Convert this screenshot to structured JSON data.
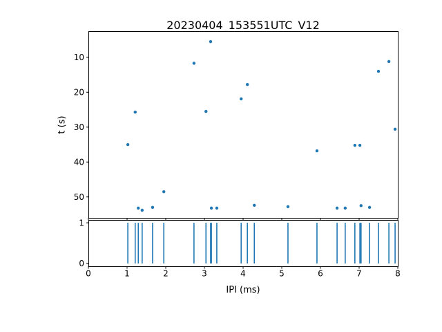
{
  "figure": {
    "title": "20230404_153551UTC_V12",
    "background_color": "#ffffff",
    "accent_color": "#1f77b4",
    "axis_color": "#000000",
    "tick_label_color": "#000000"
  },
  "chart_data": [
    {
      "type": "scatter",
      "title": "20230404_153551UTC_V12",
      "xlabel": "",
      "ylabel": "t (s)",
      "xlim": [
        0,
        8
      ],
      "ylim": [
        2.5,
        56
      ],
      "y_inverted": true,
      "xticks": [
        0,
        1,
        2,
        3,
        4,
        5,
        6,
        7,
        8
      ],
      "x_tick_labels_visible": false,
      "yticks": [
        10,
        20,
        30,
        40,
        50
      ],
      "grid": false,
      "legend": "none",
      "marker_color": "#1f77b4",
      "points": [
        [
          1.02,
          35.0
        ],
        [
          1.21,
          25.7
        ],
        [
          1.29,
          53.2
        ],
        [
          1.39,
          53.8
        ],
        [
          1.66,
          53.0
        ],
        [
          1.95,
          48.5
        ],
        [
          2.73,
          11.7
        ],
        [
          3.04,
          25.5
        ],
        [
          3.16,
          5.5
        ],
        [
          3.18,
          53.2
        ],
        [
          3.32,
          53.2
        ],
        [
          3.95,
          21.9
        ],
        [
          4.11,
          17.8
        ],
        [
          4.29,
          52.4
        ],
        [
          5.16,
          52.8
        ],
        [
          5.91,
          36.8
        ],
        [
          6.43,
          53.2
        ],
        [
          6.64,
          53.2
        ],
        [
          6.89,
          35.2
        ],
        [
          7.02,
          35.2
        ],
        [
          7.05,
          52.5
        ],
        [
          7.27,
          53.0
        ],
        [
          7.5,
          14.0
        ],
        [
          7.77,
          11.2
        ],
        [
          7.93,
          30.6
        ]
      ]
    },
    {
      "type": "event",
      "xlabel": "IPI (ms)",
      "ylabel": "",
      "xlim": [
        0,
        8
      ],
      "ylim": [
        -0.07,
        1.07
      ],
      "xticks": [
        0,
        1,
        2,
        3,
        4,
        5,
        6,
        7,
        8
      ],
      "yticks": [
        0,
        1
      ],
      "grid": false,
      "legend": "none",
      "line_color": "#1f77b4",
      "line_span": [
        0,
        1
      ],
      "events_x": [
        1.02,
        1.21,
        1.29,
        1.39,
        1.66,
        1.95,
        2.73,
        3.04,
        3.16,
        3.18,
        3.32,
        3.95,
        4.11,
        4.29,
        5.16,
        5.91,
        6.43,
        6.64,
        6.89,
        7.02,
        7.05,
        7.27,
        7.5,
        7.77,
        7.93
      ]
    }
  ]
}
